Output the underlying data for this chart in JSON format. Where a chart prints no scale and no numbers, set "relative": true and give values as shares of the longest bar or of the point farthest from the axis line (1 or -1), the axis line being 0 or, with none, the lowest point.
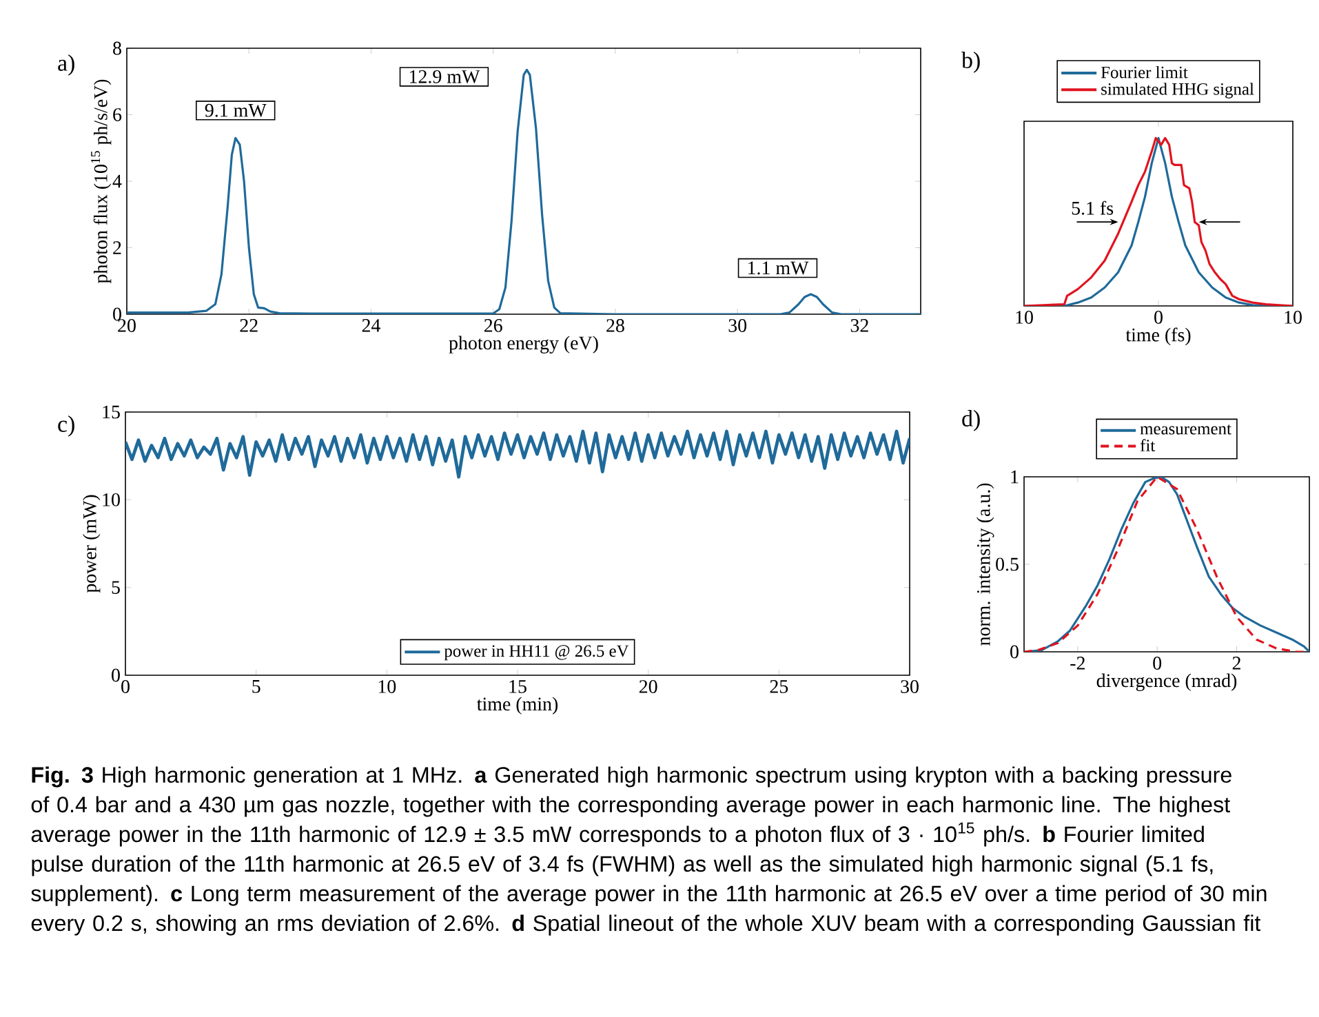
{
  "chart_data": [
    {
      "type": "line",
      "title": "a)",
      "xlabel": "photon energy (eV)",
      "ylabel": "photon flux (10$^{15}$ ph/s/eV)",
      "color": "#1f6a9a",
      "xlim": [
        20,
        33
      ],
      "ylim": [
        0,
        8
      ],
      "xticks": [
        20,
        22,
        24,
        26,
        28,
        30,
        32
      ],
      "yticks": [
        0,
        2,
        4,
        6,
        8
      ],
      "x": [
        20,
        21,
        21.3,
        21.45,
        21.55,
        21.65,
        21.72,
        21.78,
        21.85,
        21.92,
        22.0,
        22.08,
        22.15,
        22.25,
        22.35,
        22.5,
        23,
        26,
        26.1,
        26.2,
        26.3,
        26.4,
        26.5,
        26.55,
        26.6,
        26.7,
        26.8,
        26.9,
        27.0,
        27.1,
        28,
        30.7,
        30.85,
        31.0,
        31.1,
        31.2,
        31.3,
        31.4,
        31.55,
        31.7,
        33
      ],
      "values": [
        0.05,
        0.05,
        0.1,
        0.3,
        1.2,
        3.2,
        4.8,
        5.3,
        5.1,
        4.0,
        2.0,
        0.6,
        0.2,
        0.18,
        0.08,
        0.03,
        0.02,
        0.02,
        0.15,
        0.8,
        2.8,
        5.5,
        7.2,
        7.35,
        7.2,
        5.6,
        3.0,
        1.0,
        0.2,
        0.03,
        0,
        0,
        0.05,
        0.3,
        0.52,
        0.6,
        0.52,
        0.3,
        0.05,
        0,
        0
      ],
      "annotations": [
        {
          "text": "9.1 mW",
          "x": 21.78,
          "y": 5.3
        },
        {
          "text": "12.9 mW",
          "x": 26.55,
          "y": 7.35
        },
        {
          "text": "1.1 mW",
          "x": 31.2,
          "y": 0.6
        }
      ]
    },
    {
      "type": "line",
      "title": "b)",
      "xlabel": "time (fs)",
      "relative": true,
      "xlim": [
        -10,
        10
      ],
      "xticks": [
        {
          "value": -10,
          "label": "10"
        },
        0,
        10
      ],
      "legend": "top",
      "series": [
        {
          "name": "Fourier limit",
          "color": "#1f6a9a",
          "x": [
            -10,
            -7,
            -6,
            -5,
            -4,
            -3,
            -2,
            -1.5,
            -1,
            -0.5,
            0,
            0.5,
            1,
            1.5,
            2,
            3,
            4,
            5,
            6,
            7,
            10
          ],
          "values": [
            0,
            0,
            0.02,
            0.05,
            0.11,
            0.2,
            0.36,
            0.5,
            0.65,
            0.85,
            1.0,
            0.85,
            0.65,
            0.5,
            0.36,
            0.2,
            0.11,
            0.05,
            0.02,
            0.005,
            0
          ]
        },
        {
          "name": "simulated HHG signal",
          "color": "#e0141f",
          "x": [
            -10,
            -7,
            -6.8,
            -6,
            -5,
            -4,
            -3,
            -2,
            -1.5,
            -1,
            -0.5,
            -0.2,
            0.2,
            0.5,
            0.8,
            1.0,
            1.2,
            1.7,
            1.9,
            2.3,
            2.5,
            2.7,
            3.0,
            3.2,
            3.5,
            3.8,
            4.2,
            4.6,
            5,
            5.5,
            6,
            7,
            8,
            10
          ],
          "values": [
            0,
            0.01,
            0.06,
            0.1,
            0.17,
            0.27,
            0.43,
            0.62,
            0.72,
            0.8,
            0.92,
            1.0,
            0.96,
            1.0,
            0.96,
            0.85,
            0.84,
            0.84,
            0.72,
            0.7,
            0.62,
            0.5,
            0.48,
            0.38,
            0.33,
            0.25,
            0.2,
            0.16,
            0.13,
            0.06,
            0.04,
            0.02,
            0.01,
            0
          ]
        }
      ],
      "annotations": [
        {
          "text": "5.1 fs",
          "x": -3,
          "y": 0.5
        }
      ]
    },
    {
      "type": "line",
      "title": "c)",
      "xlabel": "time (min)",
      "ylabel": "power (mW)",
      "xlim": [
        0,
        30
      ],
      "ylim": [
        0,
        15
      ],
      "xticks": [
        0,
        5,
        10,
        15,
        20,
        25,
        30
      ],
      "yticks": [
        0,
        5,
        10,
        15
      ],
      "legend": "bottom",
      "x": [
        0,
        0.25,
        0.5,
        0.75,
        1,
        1.25,
        1.5,
        1.75,
        2,
        2.25,
        2.5,
        2.75,
        3,
        3.25,
        3.5,
        3.75,
        4,
        4.25,
        4.5,
        4.75,
        5,
        5.25,
        5.5,
        5.75,
        6,
        6.25,
        6.5,
        6.75,
        7,
        7.25,
        7.5,
        7.75,
        8,
        8.25,
        8.5,
        8.75,
        9,
        9.25,
        9.5,
        9.75,
        10,
        10.25,
        10.5,
        10.75,
        11,
        11.25,
        11.5,
        11.75,
        12,
        12.25,
        12.5,
        12.75,
        13,
        13.25,
        13.5,
        13.75,
        14,
        14.25,
        14.5,
        14.75,
        15,
        15.25,
        15.5,
        15.75,
        16,
        16.25,
        16.5,
        16.75,
        17,
        17.25,
        17.5,
        17.75,
        18,
        18.25,
        18.5,
        18.75,
        19,
        19.25,
        19.5,
        19.75,
        20,
        20.25,
        20.5,
        20.75,
        21,
        21.25,
        21.5,
        21.75,
        22,
        22.25,
        22.5,
        22.75,
        23,
        23.25,
        23.5,
        23.75,
        24,
        24.25,
        24.5,
        24.75,
        25,
        25.25,
        25.5,
        25.75,
        26,
        26.25,
        26.5,
        26.75,
        27,
        27.25,
        27.5,
        27.75,
        28,
        28.25,
        28.5,
        28.75,
        29,
        29.25,
        29.5,
        29.75,
        30
      ],
      "series": [
        {
          "name": "power in HH11 @ 26.5 eV",
          "color": "#1f6a9a",
          "values": [
            13.3,
            12.3,
            13.4,
            12.2,
            13.1,
            12.4,
            13.5,
            12.3,
            13.2,
            12.5,
            13.4,
            12.4,
            13.0,
            12.6,
            13.5,
            11.7,
            13.2,
            12.4,
            13.6,
            11.4,
            13.3,
            12.5,
            13.4,
            12.2,
            13.7,
            12.3,
            13.5,
            12.6,
            13.6,
            11.9,
            13.4,
            12.5,
            13.6,
            12.2,
            13.5,
            12.4,
            13.7,
            12.1,
            13.5,
            12.3,
            13.6,
            12.4,
            13.5,
            12.2,
            13.7,
            12.3,
            13.6,
            12.0,
            13.5,
            12.2,
            13.4,
            11.3,
            13.6,
            12.4,
            13.7,
            12.5,
            13.6,
            12.3,
            13.8,
            12.6,
            13.7,
            12.4,
            13.6,
            12.6,
            13.8,
            12.3,
            13.7,
            12.5,
            13.6,
            12.2,
            13.9,
            12.1,
            13.8,
            11.6,
            13.7,
            12.4,
            13.6,
            12.3,
            13.8,
            12.2,
            13.7,
            12.4,
            13.8,
            12.5,
            13.6,
            12.6,
            13.9,
            12.4,
            13.7,
            12.5,
            13.8,
            12.3,
            13.9,
            12.0,
            13.7,
            12.5,
            13.8,
            12.4,
            13.9,
            12.1,
            13.7,
            12.6,
            13.8,
            12.4,
            13.7,
            12.2,
            13.6,
            11.8,
            13.7,
            12.3,
            13.8,
            12.5,
            13.6,
            12.4,
            13.8,
            12.6,
            13.7,
            12.3,
            13.9,
            12.1,
            13.5
          ]
        }
      ]
    },
    {
      "type": "line",
      "title": "d)",
      "xlabel": "divergence (mrad)",
      "ylabel": "norm. intensity (a.u.)",
      "xlim": [
        -3.35,
        3.83
      ],
      "ylim": [
        0,
        1
      ],
      "xticks": [
        -2,
        0,
        2
      ],
      "yticks": [
        0,
        0.5,
        1
      ],
      "legend": "top",
      "series": [
        {
          "name": "measurement",
          "color": "#1f6a9a",
          "x": [
            -3.35,
            -2.9,
            -2.5,
            -2.2,
            -1.8,
            -1.5,
            -1.2,
            -0.9,
            -0.6,
            -0.3,
            -0.1,
            0.1,
            0.3,
            0.5,
            0.7,
            1.0,
            1.3,
            1.6,
            1.9,
            2.2,
            2.6,
            3.0,
            3.4,
            3.7,
            3.83
          ],
          "values": [
            0,
            0.01,
            0.06,
            0.12,
            0.26,
            0.38,
            0.53,
            0.7,
            0.85,
            0.97,
            0.99,
            1.0,
            0.97,
            0.9,
            0.78,
            0.6,
            0.43,
            0.33,
            0.25,
            0.2,
            0.15,
            0.11,
            0.07,
            0.03,
            0
          ]
        },
        {
          "name": "fit",
          "color": "#e0141f",
          "line_style": "dashed",
          "x": [
            -3.35,
            -3,
            -2.5,
            -2,
            -1.5,
            -1,
            -0.5,
            0,
            0.5,
            1,
            1.5,
            2,
            2.5,
            3,
            3.5,
            3.83
          ],
          "values": [
            0,
            0.01,
            0.05,
            0.15,
            0.33,
            0.58,
            0.86,
            1.0,
            0.93,
            0.7,
            0.43,
            0.2,
            0.07,
            0.02,
            0,
            0
          ]
        }
      ]
    },
    {
      "type": "other",
      "annotations": [
        "**Fig. 3** High harmonic generation at 1 MHz. **a** Generated high harmonic spectrum using krypton with a backing pressure of 0.4 bar and a 430 µm gas nozzle, together with the corresponding average power in each harmonic line. The highest average power in the 11th harmonic of 12.9 ± 3.5 mW corresponds to a photon flux of 3 · 10$^{15}$ ph/s. **b** Fourier limited pulse duration of the 11th harmonic at 26.5 eV of 3.4 fs (FWHM) as well as the simulated high harmonic signal (5.1 fs, supplement). **c** Long term measurement of the average power in the 11th harmonic at 26.5 eV over a time period of 30 min every 0.2 s, showing an rms deviation of 2.6%. **d** Spatial lineout of the whole XUV beam with a corresponding Gaussian fit"
      ]
    }
  ]
}
